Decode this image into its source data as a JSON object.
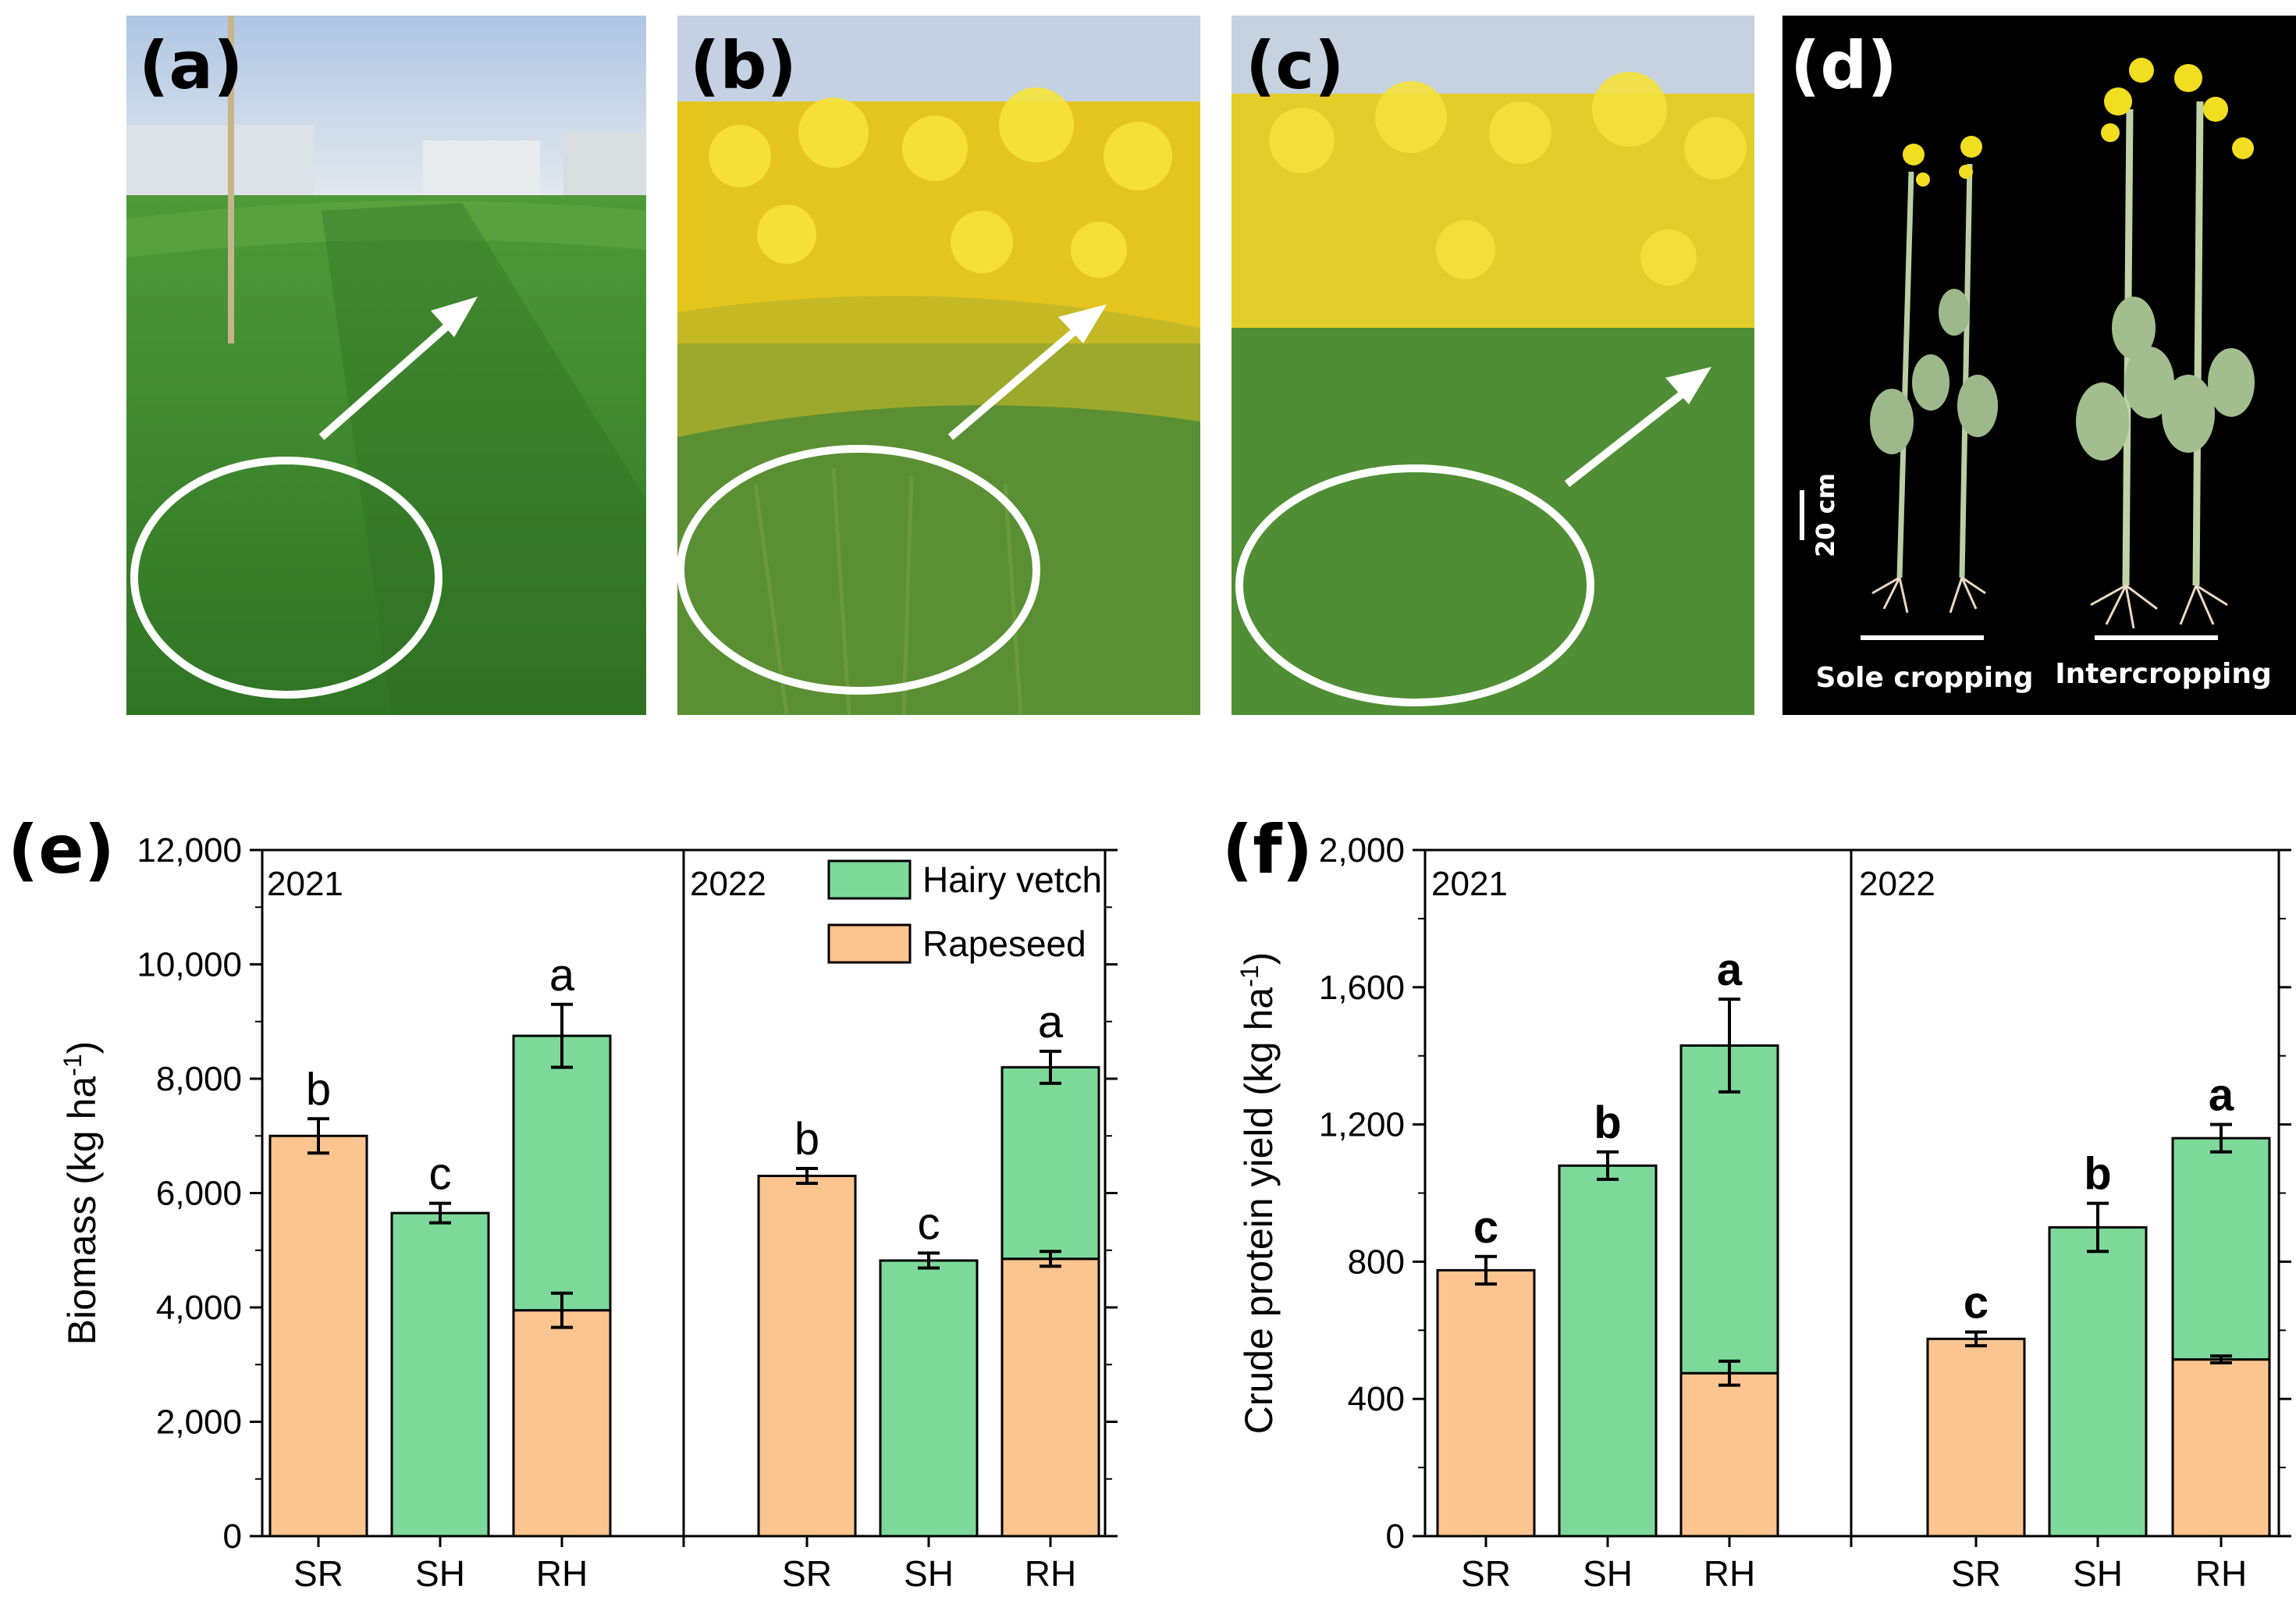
{
  "panels": {
    "a": {
      "label": "(a)"
    },
    "b": {
      "label": "(b)"
    },
    "c": {
      "label": "(c)"
    },
    "d": {
      "label": "(d)",
      "scale_label": "20 cm",
      "sole_label": "Sole cropping",
      "inter_label": "Intercropping"
    }
  },
  "colors": {
    "rapeseed": "#FCC48F",
    "hairy_vetch": "#7DD99A",
    "photo_green": "#3F8F2C",
    "photo_yellow": "#F1DB1C",
    "sky": "#C9D6E6"
  },
  "chart_data": [
    {
      "type": "bar",
      "stacked": true,
      "panel_label": "(e)",
      "ylabel": "Biomass (kg ha",
      "ylabel_sup": "-1",
      "ylabel_close": ")",
      "ylim": [
        0,
        12000
      ],
      "yticks": [
        "0",
        "2,000",
        "4,000",
        "6,000",
        "8,000",
        "10,000",
        "12,000"
      ],
      "ytick_values": [
        0,
        2000,
        4000,
        6000,
        8000,
        10000,
        12000
      ],
      "legend": [
        "Hairy vetch",
        "Rapeseed"
      ],
      "legend_position": "top-right",
      "groups": [
        {
          "year": "2021",
          "bars": [
            {
              "category": "SR",
              "rapeseed": 7000,
              "rapeseed_err": 300,
              "vetch": 0,
              "total_err": 300,
              "letter": "b"
            },
            {
              "category": "SH",
              "rapeseed": 0,
              "vetch": 5650,
              "total_err": 170,
              "letter": "c"
            },
            {
              "category": "RH",
              "rapeseed": 3950,
              "rapeseed_err": 300,
              "vetch": 4800,
              "total_err": 550,
              "letter": "a"
            }
          ]
        },
        {
          "year": "2022",
          "bars": [
            {
              "category": "SR",
              "rapeseed": 6300,
              "rapeseed_err": 130,
              "vetch": 0,
              "total_err": 130,
              "letter": "b"
            },
            {
              "category": "SH",
              "rapeseed": 0,
              "vetch": 4820,
              "total_err": 130,
              "letter": "c"
            },
            {
              "category": "RH",
              "rapeseed": 4850,
              "rapeseed_err": 130,
              "vetch": 3350,
              "total_err": 280,
              "letter": "a"
            }
          ]
        }
      ]
    },
    {
      "type": "bar",
      "stacked": true,
      "panel_label": "(f)",
      "ylabel": "Crude protein yield (kg ha",
      "ylabel_sup": "-1",
      "ylabel_close": ")",
      "ylim": [
        0,
        2000
      ],
      "yticks": [
        "0",
        "400",
        "800",
        "1,200",
        "1,600",
        "2,000"
      ],
      "ytick_values": [
        0,
        400,
        800,
        1200,
        1600,
        2000
      ],
      "groups": [
        {
          "year": "2021",
          "bars": [
            {
              "category": "SR",
              "rapeseed": 775,
              "rapeseed_err": 40,
              "vetch": 0,
              "total_err": 40,
              "letter": "c"
            },
            {
              "category": "SH",
              "rapeseed": 0,
              "vetch": 1080,
              "total_err": 40,
              "letter": "b"
            },
            {
              "category": "RH",
              "rapeseed": 475,
              "rapeseed_err": 35,
              "vetch": 955,
              "total_err": 135,
              "letter": "a"
            }
          ]
        },
        {
          "year": "2022",
          "bars": [
            {
              "category": "SR",
              "rapeseed": 575,
              "rapeseed_err": 20,
              "vetch": 0,
              "total_err": 20,
              "letter": "c"
            },
            {
              "category": "SH",
              "rapeseed": 0,
              "vetch": 900,
              "total_err": 70,
              "letter": "b"
            },
            {
              "category": "RH",
              "rapeseed": 515,
              "rapeseed_err": 10,
              "vetch": 645,
              "total_err": 40,
              "letter": "a"
            }
          ]
        }
      ]
    }
  ]
}
